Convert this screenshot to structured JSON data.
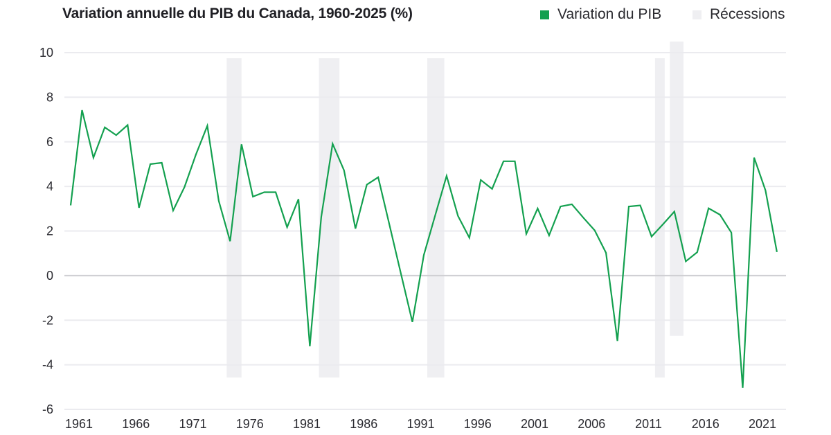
{
  "chart_data": {
    "type": "line",
    "title": "Variation annuelle du PIB du Canada, 1960-2025 (%)",
    "xlabel": "",
    "ylabel": "",
    "ylim": [
      -6,
      10
    ],
    "xlim": [
      1961,
      2023
    ],
    "yticks": [
      -6,
      -4,
      -2,
      0,
      2,
      4,
      6,
      8,
      10
    ],
    "xticks": [
      "1961",
      "1966",
      "1971",
      "1976",
      "1981",
      "1986",
      "1991",
      "1996",
      "2001",
      "2006",
      "2011",
      "2016",
      "2021"
    ],
    "grid": true,
    "legend_position": "top-right",
    "series": [
      {
        "name": "Variation du PIB",
        "color": "#13a04f",
        "x": [
          1961,
          1962,
          1963,
          1964,
          1965,
          1966,
          1967,
          1968,
          1969,
          1970,
          1971,
          1972,
          1973,
          1974,
          1975,
          1976,
          1977,
          1978,
          1979,
          1980,
          1981,
          1982,
          1983,
          1984,
          1985,
          1986,
          1987,
          1988,
          1989,
          1990,
          1991,
          1992,
          1993,
          1994,
          1995,
          1996,
          1997,
          1998,
          1999,
          2000,
          2001,
          2002,
          2003,
          2004,
          2005,
          2006,
          2007,
          2008,
          2009,
          2010,
          2011,
          2012,
          2013,
          2014,
          2015,
          2016,
          2017,
          2018,
          2019,
          2020,
          2021,
          2022,
          2023
        ],
        "values": [
          3.15,
          7.42,
          5.29,
          6.65,
          6.3,
          6.75,
          3.04,
          5.0,
          5.06,
          2.92,
          3.98,
          5.43,
          6.72,
          3.35,
          1.54,
          5.89,
          3.54,
          3.74,
          3.74,
          2.17,
          3.43,
          -3.17,
          2.63,
          5.91,
          4.72,
          2.11,
          4.08,
          4.41,
          2.25,
          0.08,
          -2.08,
          0.92,
          2.7,
          4.47,
          2.68,
          1.7,
          4.29,
          3.89,
          5.13,
          5.13,
          1.87,
          3.01,
          1.8,
          3.1,
          3.2,
          2.6,
          2.03,
          1.02,
          -2.93,
          3.1,
          3.15,
          1.75,
          2.3,
          2.87,
          0.64,
          1.05,
          3.02,
          2.73,
          1.93,
          -5.03,
          5.29,
          3.82,
          1.06
        ]
      }
    ],
    "recessions": {
      "name": "Récessions",
      "color": "#efeff2",
      "bands": [
        {
          "start": 1974.7,
          "end": 1976.0,
          "top": 9.75,
          "bottom": -4.57
        },
        {
          "start": 1982.8,
          "end": 1984.6,
          "top": 9.75,
          "bottom": -4.57
        },
        {
          "start": 1992.3,
          "end": 1993.8,
          "top": 9.75,
          "bottom": -4.57
        },
        {
          "start": 2012.3,
          "end": 2013.15,
          "top": 9.75,
          "bottom": -4.57
        },
        {
          "start": 2013.6,
          "end": 2014.8,
          "top": 10.5,
          "bottom": -2.7
        }
      ]
    }
  }
}
